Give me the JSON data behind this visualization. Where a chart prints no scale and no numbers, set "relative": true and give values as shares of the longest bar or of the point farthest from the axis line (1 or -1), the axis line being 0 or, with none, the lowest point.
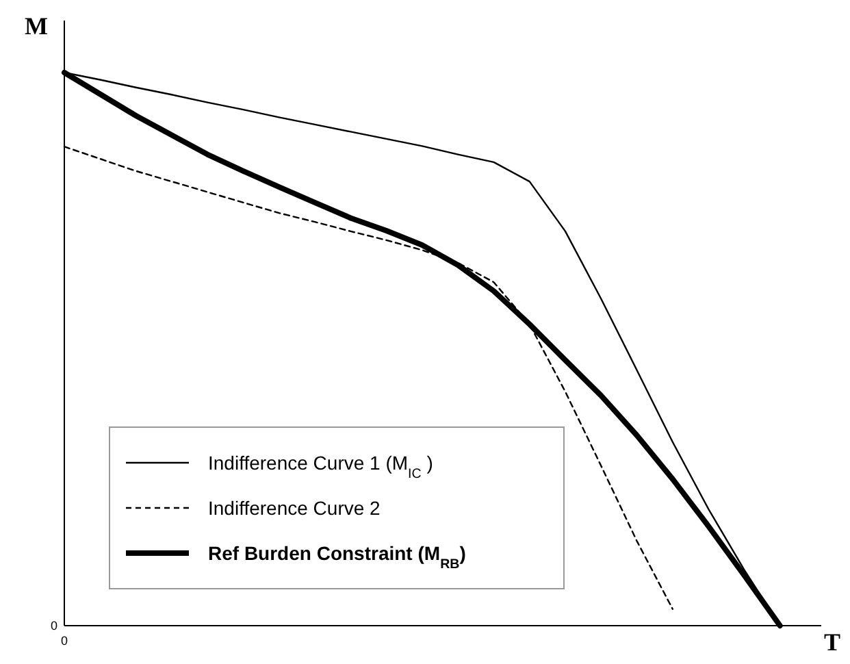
{
  "chart_data": {
    "type": "line",
    "xlabel": "T",
    "ylabel": "M",
    "relative": true,
    "legend": "bottom left",
    "marker": "none",
    "annotations": [
      "0",
      "0"
    ],
    "categories": [
      null,
      null,
      null,
      null,
      null,
      null,
      null,
      null,
      null,
      null,
      null,
      null,
      null,
      null,
      null,
      null,
      null,
      null,
      null,
      null,
      null,
      null
    ],
    "series": [
      {
        "name": "Indifference Curve 1 (M$_{IC}$ )",
        "color": "#000000",
        "line_style": "solid",
        "values": [
          1,
          0.987,
          0.973,
          0.96,
          0.946,
          0.933,
          0.919,
          0.906,
          0.893,
          0.88,
          0.867,
          0.852,
          0.838,
          0.803,
          0.713,
          0.591,
          0.462,
          0.332,
          0.211,
          0.101,
          0,
          null
        ]
      },
      {
        "name": "Indifference Curve 2",
        "color": "#000000",
        "line_style": "dashed",
        "values": [
          0.866,
          0.844,
          0.822,
          0.803,
          0.784,
          0.765,
          0.746,
          0.73,
          0.713,
          0.697,
          0.679,
          0.656,
          0.621,
          0.545,
          0.423,
          0.289,
          0.153,
          0.03,
          null,
          null,
          null,
          null
        ]
      },
      {
        "name": "Ref Burden Constraint (M$_{RB}$)",
        "color": "#000000",
        "line_style": "solid",
        "values": [
          1,
          0.961,
          0.922,
          0.887,
          0.852,
          0.822,
          0.793,
          0.765,
          0.737,
          0.714,
          0.688,
          0.652,
          0.605,
          0.545,
          0.48,
          0.416,
          0.344,
          0.265,
          0.18,
          0.091,
          0,
          null
        ]
      }
    ]
  }
}
